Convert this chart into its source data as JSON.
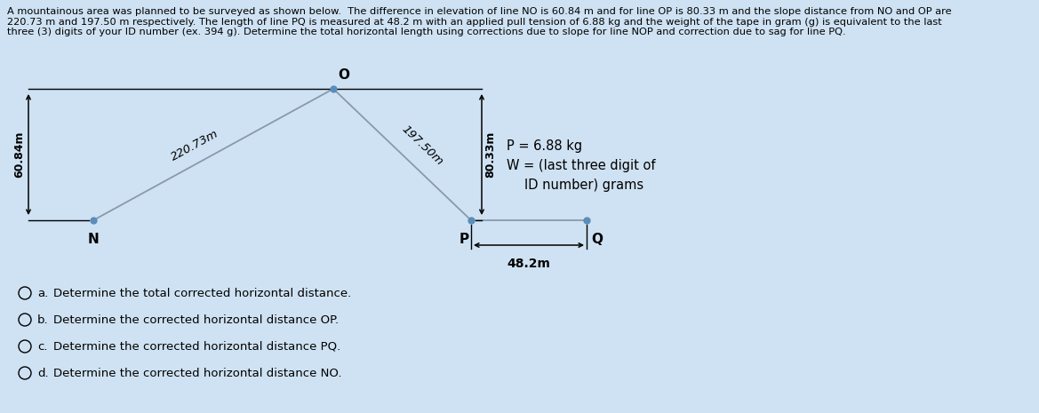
{
  "bg_color": "#cfe2f3",
  "title_text": "A mountainous area was planned to be surveyed as shown below.  The difference in elevation of line NO is 60.84 m and for line OP is 80.33 m and the slope distance from NO and OP are\n220.73 m and 197.50 m respectively. The length of line PQ is measured at 48.2 m with an applied pull tension of 6.88 kg and the weight of the tape in gram (g) is equivalent to the last\nthree (3) digits of your ID number (ex. 394 g). Determine the total horizontal length using corrections due to slope for line NOP and correction due to sag for line PQ.",
  "label_NO": "220.73m",
  "label_OP": "197.50m",
  "label_PQ": "48.2m",
  "elev_NO": "60.84m",
  "elev_OP": "80.33m",
  "P_label": "P = 6.88 kg",
  "W_label1": "W = (last three digit of",
  "W_label2": "      ID number) grams",
  "line_color": "#8899aa",
  "dot_color": "#5b8db8",
  "options": [
    "Determine the total corrected horizontal distance.",
    "Determine the corrected horizontal distance OP.",
    "Determine the corrected horizontal distance PQ.",
    "Determine the corrected horizontal distance NO."
  ],
  "option_letters": [
    "a.",
    "b.",
    "c.",
    "d."
  ]
}
